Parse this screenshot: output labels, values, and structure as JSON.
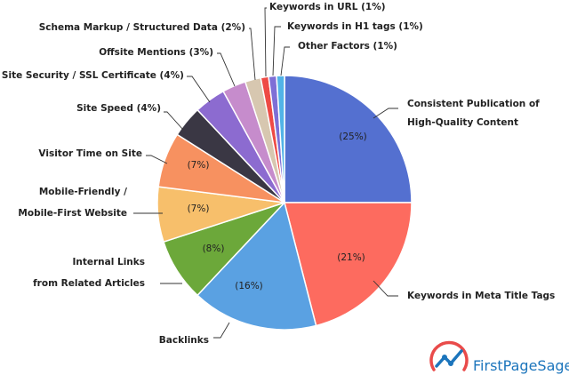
{
  "chart_data": {
    "type": "pie",
    "start_angle_deg": 0,
    "direction": "clockwise",
    "slices": [
      {
        "label": [
          "Consistent Publication of",
          "High-Quality Content"
        ],
        "value": 25,
        "value_label": "(25%)",
        "color": "#5470d0"
      },
      {
        "label": [
          "Keywords in Meta Title Tags"
        ],
        "value": 21,
        "value_label": "(21%)",
        "color": "#fd6b5f"
      },
      {
        "label": [
          "Backlinks"
        ],
        "value": 16,
        "value_label": "(16%)",
        "color": "#5aa1e2"
      },
      {
        "label": [
          "Internal Links",
          "from Related Articles"
        ],
        "value": 8,
        "value_label": "(8%)",
        "color": "#6ca83a"
      },
      {
        "label": [
          "Mobile-Friendly /",
          "Mobile-First Website"
        ],
        "value": 7,
        "value_label": "(7%)",
        "color": "#f7bf6b"
      },
      {
        "label": [
          "Visitor Time on Site"
        ],
        "value": 7,
        "value_label": "(7%)",
        "color": "#f79160"
      },
      {
        "label": [
          "Site Speed (4%)"
        ],
        "value": 4,
        "value_label": "",
        "color": "#3a3744"
      },
      {
        "label": [
          "Site Security / SSL Certificate (4%)"
        ],
        "value": 4,
        "value_label": "",
        "color": "#8c6bd0"
      },
      {
        "label": [
          "Offsite Mentions (3%)"
        ],
        "value": 3,
        "value_label": "",
        "color": "#c68ccc"
      },
      {
        "label": [
          "Schema Markup / Structured Data (2%)"
        ],
        "value": 2,
        "value_label": "",
        "color": "#d7c7b0"
      },
      {
        "label": [
          "Keywords in URL (1%)"
        ],
        "value": 1,
        "value_label": "",
        "color": "#ee4a45"
      },
      {
        "label": [
          "Keywords in H1 tags (1%)"
        ],
        "value": 1,
        "value_label": "",
        "color": "#7e6fd6"
      },
      {
        "label": [
          "Other Factors (1%)"
        ],
        "value": 1,
        "value_label": "",
        "color": "#52b3e7"
      }
    ]
  },
  "brand": {
    "name": "FirstPageSage",
    "color": "#1c75bc",
    "accent": "#e94b4a"
  }
}
